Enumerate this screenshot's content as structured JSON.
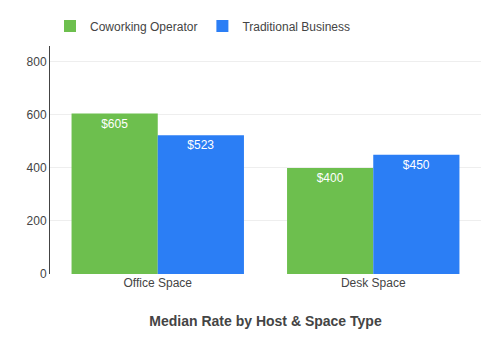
{
  "chart_data": {
    "type": "bar",
    "x_label": "Median Rate by Host & Space Type",
    "categories": [
      "Office Space",
      "Desk Space"
    ],
    "series": [
      {
        "name": "Coworking Operator",
        "color": "#6dbf4e",
        "values": [
          605,
          400
        ],
        "value_labels": [
          "$605",
          "$400"
        ]
      },
      {
        "name": "Traditional Business",
        "color": "#2b7ef5",
        "values": [
          523,
          450
        ],
        "value_labels": [
          "$523",
          "$450"
        ]
      }
    ],
    "ylim": [
      0,
      860
    ],
    "yticks": [
      0,
      200,
      400,
      600,
      800
    ],
    "grid": true,
    "legend": "upper left",
    "data_labels": true
  }
}
